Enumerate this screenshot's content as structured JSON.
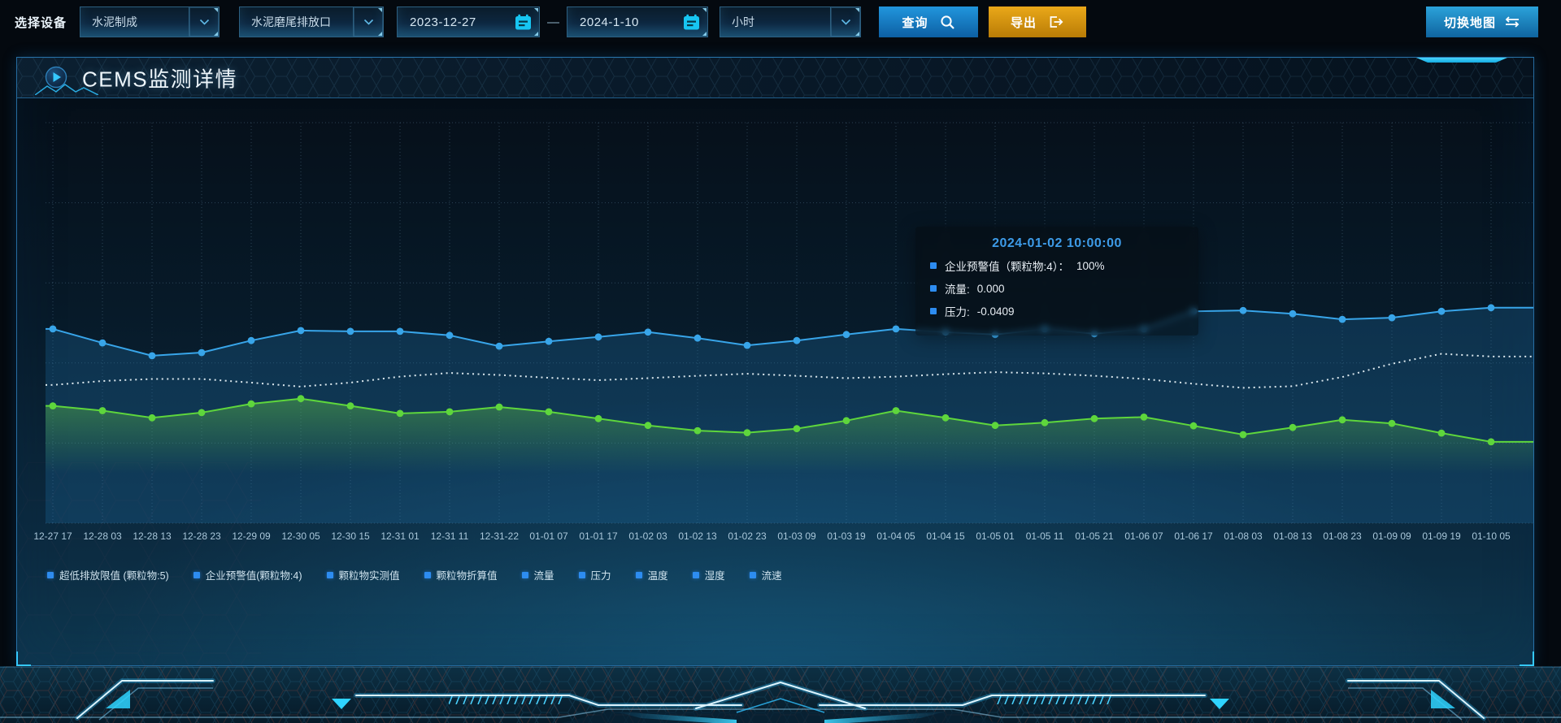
{
  "toolbar": {
    "device_label": "选择设备",
    "select_process": "水泥制成",
    "select_outlet": "水泥磨尾排放口",
    "date_start": "2023-12-27",
    "date_separator": "—",
    "date_end": "2024-1-10",
    "select_interval": "小时",
    "query_label": "查询",
    "export_label": "导出",
    "switch_map_label": "切换地图"
  },
  "panel": {
    "title": "CEMS监测详情"
  },
  "tooltip": {
    "title": "2024-01-02 10:00:00",
    "rows": [
      {
        "label": "企业预警值（颗粒物:4）：",
        "value": "100%"
      },
      {
        "label": "流量:",
        "value": "0.000"
      },
      {
        "label": "压力:",
        "value": "-0.0409"
      }
    ]
  },
  "legend": [
    "超低排放限值 (颗粒物:5)",
    "企业预警值(颗粒物:4)",
    "颗粒物实测值",
    "颗粒物折算值",
    "流量",
    "压力",
    "温度",
    "湿度",
    "流速"
  ],
  "colors": {
    "accent_cyan": "#1ec8f5",
    "query_blue": "#1787d2",
    "export_orange": "#d4920e",
    "grid": "rgba(130,175,205,0.30)",
    "xlabel": "#a9c7da",
    "legend_marker": "#2d8cf0",
    "tooltip_title": "#3d9be8",
    "blue_area": "rgba(30,105,160,0.30)",
    "green_area": "#69d246"
  },
  "chart_data": {
    "type": "line",
    "title": "",
    "xlabel": "",
    "ylabel": "",
    "note": "values are relative height percent (no y-axis shown in UI), 0 = plot bottom, 100 = plot top",
    "ylim": [
      0,
      100
    ],
    "grid": {
      "style": "dotted",
      "v_gridlines": 30,
      "h_gridlines": 6
    },
    "x_labels": [
      "12-27 17",
      "12-28 03",
      "12-28 13",
      "12-28 23",
      "12-29 09",
      "12-30 05",
      "12-30 15",
      "12-31 01",
      "12-31 11",
      "12-31-22",
      "01-01 07",
      "01-01 17",
      "01-02 03",
      "01-02 13",
      "01-02 23",
      "01-03 09",
      "01-03 19",
      "01-04 05",
      "01-04 15",
      "01-05 01",
      "01-05 11",
      "01-05 21",
      "01-06 07",
      "01-06 17",
      "01-08 03",
      "01-08 13",
      "01-08 23",
      "01-09 09",
      "01-09 19",
      "01-10 05"
    ],
    "series": [
      {
        "name": "流量",
        "color": "#38a5e9",
        "line_style": "solid",
        "markers": true,
        "area": "flat-blue",
        "values": [
          48.5,
          45.0,
          41.8,
          42.6,
          45.6,
          48.1,
          47.9,
          47.9,
          46.9,
          44.2,
          45.4,
          46.5,
          47.7,
          46.2,
          44.4,
          45.6,
          47.1,
          48.5,
          47.7,
          47.1,
          48.5,
          47.3,
          48.5,
          52.9,
          53.1,
          52.3,
          50.9,
          51.3,
          52.9,
          53.8
        ]
      },
      {
        "name": "企业预警值(颗粒物:4)",
        "color": "rgba(236,246,251,0.92)",
        "line_style": "dotted",
        "markers": false,
        "area": null,
        "values": [
          34.5,
          35.5,
          36.0,
          36.0,
          35.1,
          34.1,
          35.1,
          36.6,
          37.5,
          37.0,
          36.3,
          35.7,
          36.2,
          36.8,
          37.3,
          36.8,
          36.2,
          36.6,
          37.2,
          37.7,
          37.4,
          36.8,
          36.0,
          34.8,
          33.8,
          34.2,
          36.5,
          39.8,
          42.3,
          41.6
        ]
      },
      {
        "name": "压力",
        "color": "#5ed63c",
        "line_style": "solid",
        "markers": true,
        "area": "fade-green",
        "values": [
          29.3,
          28.1,
          26.3,
          27.6,
          29.8,
          31.1,
          29.3,
          27.4,
          27.8,
          29.0,
          27.8,
          26.1,
          24.4,
          23.1,
          22.6,
          23.6,
          25.6,
          28.1,
          26.3,
          24.4,
          25.1,
          26.1,
          26.5,
          24.3,
          22.1,
          23.9,
          25.8,
          24.9,
          22.5,
          20.3
        ]
      }
    ]
  }
}
